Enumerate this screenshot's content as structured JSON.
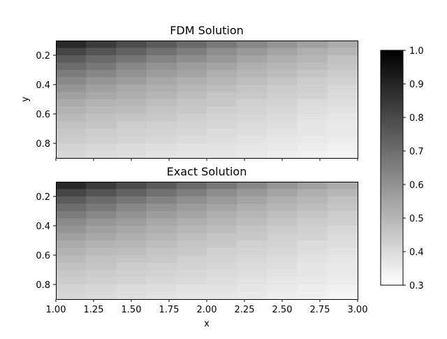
{
  "chart_data": {
    "type": "heatmap",
    "colormap": "gray_r",
    "color_min": 0.3,
    "color_max": 1.0,
    "x_extent": [
      1.0,
      3.0
    ],
    "y_extent": [
      0.1,
      0.9
    ],
    "x_cells": 10,
    "y_cells": 16,
    "x_centers": [
      1.1,
      1.3,
      1.5,
      1.7,
      1.9,
      2.1,
      2.3,
      2.5,
      2.7,
      2.9
    ],
    "y_centers": [
      0.125,
      0.175,
      0.225,
      0.275,
      0.325,
      0.375,
      0.425,
      0.475,
      0.525,
      0.575,
      0.625,
      0.675,
      0.725,
      0.775,
      0.825,
      0.875
    ],
    "panels": [
      {
        "title": "FDM Solution",
        "ylabel": "y",
        "xlabel": "",
        "show_x_ticklabels": false,
        "values": [
          [
            0.89,
            0.84,
            0.79,
            0.75,
            0.71,
            0.67,
            0.63,
            0.59,
            0.56,
            0.53
          ],
          [
            0.81,
            0.77,
            0.73,
            0.69,
            0.65,
            0.61,
            0.58,
            0.55,
            0.52,
            0.5
          ],
          [
            0.75,
            0.71,
            0.68,
            0.64,
            0.61,
            0.58,
            0.55,
            0.52,
            0.5,
            0.47
          ],
          [
            0.7,
            0.67,
            0.63,
            0.6,
            0.57,
            0.55,
            0.52,
            0.5,
            0.48,
            0.46
          ],
          [
            0.66,
            0.63,
            0.6,
            0.57,
            0.55,
            0.52,
            0.5,
            0.48,
            0.46,
            0.44
          ],
          [
            0.62,
            0.59,
            0.57,
            0.54,
            0.52,
            0.5,
            0.48,
            0.46,
            0.44,
            0.43
          ],
          [
            0.59,
            0.56,
            0.54,
            0.52,
            0.5,
            0.48,
            0.46,
            0.44,
            0.43,
            0.41
          ],
          [
            0.56,
            0.54,
            0.52,
            0.5,
            0.48,
            0.46,
            0.45,
            0.43,
            0.42,
            0.4
          ],
          [
            0.53,
            0.51,
            0.5,
            0.48,
            0.46,
            0.45,
            0.43,
            0.42,
            0.4,
            0.39
          ],
          [
            0.51,
            0.49,
            0.48,
            0.46,
            0.45,
            0.43,
            0.42,
            0.41,
            0.39,
            0.38
          ],
          [
            0.49,
            0.47,
            0.46,
            0.45,
            0.43,
            0.42,
            0.41,
            0.4,
            0.38,
            0.37
          ],
          [
            0.47,
            0.46,
            0.44,
            0.43,
            0.42,
            0.41,
            0.4,
            0.39,
            0.37,
            0.36
          ],
          [
            0.45,
            0.44,
            0.43,
            0.42,
            0.41,
            0.4,
            0.39,
            0.38,
            0.37,
            0.36
          ],
          [
            0.44,
            0.43,
            0.42,
            0.41,
            0.4,
            0.39,
            0.38,
            0.37,
            0.36,
            0.35
          ],
          [
            0.42,
            0.41,
            0.4,
            0.39,
            0.38,
            0.38,
            0.37,
            0.36,
            0.35,
            0.34
          ],
          [
            0.41,
            0.4,
            0.39,
            0.38,
            0.37,
            0.37,
            0.36,
            0.35,
            0.34,
            0.33
          ]
        ]
      },
      {
        "title": "Exact Solution",
        "ylabel": "",
        "xlabel": "x",
        "show_x_ticklabels": true,
        "values": [
          [
            0.89,
            0.84,
            0.79,
            0.75,
            0.71,
            0.67,
            0.63,
            0.59,
            0.56,
            0.53
          ],
          [
            0.81,
            0.77,
            0.73,
            0.69,
            0.65,
            0.61,
            0.58,
            0.55,
            0.52,
            0.5
          ],
          [
            0.75,
            0.71,
            0.68,
            0.64,
            0.61,
            0.58,
            0.55,
            0.52,
            0.5,
            0.47
          ],
          [
            0.7,
            0.67,
            0.63,
            0.6,
            0.57,
            0.55,
            0.52,
            0.5,
            0.48,
            0.46
          ],
          [
            0.66,
            0.63,
            0.6,
            0.57,
            0.55,
            0.52,
            0.5,
            0.48,
            0.46,
            0.44
          ],
          [
            0.62,
            0.59,
            0.57,
            0.54,
            0.52,
            0.5,
            0.48,
            0.46,
            0.44,
            0.43
          ],
          [
            0.59,
            0.56,
            0.54,
            0.52,
            0.5,
            0.48,
            0.46,
            0.44,
            0.43,
            0.41
          ],
          [
            0.56,
            0.54,
            0.52,
            0.5,
            0.48,
            0.46,
            0.45,
            0.43,
            0.42,
            0.4
          ],
          [
            0.53,
            0.51,
            0.5,
            0.48,
            0.46,
            0.45,
            0.43,
            0.42,
            0.4,
            0.39
          ],
          [
            0.51,
            0.49,
            0.48,
            0.46,
            0.45,
            0.43,
            0.42,
            0.41,
            0.39,
            0.38
          ],
          [
            0.49,
            0.47,
            0.46,
            0.45,
            0.43,
            0.42,
            0.41,
            0.4,
            0.38,
            0.37
          ],
          [
            0.47,
            0.46,
            0.44,
            0.43,
            0.42,
            0.41,
            0.4,
            0.39,
            0.37,
            0.36
          ],
          [
            0.45,
            0.44,
            0.43,
            0.42,
            0.41,
            0.4,
            0.39,
            0.38,
            0.37,
            0.36
          ],
          [
            0.44,
            0.43,
            0.42,
            0.41,
            0.4,
            0.39,
            0.38,
            0.37,
            0.36,
            0.35
          ],
          [
            0.42,
            0.41,
            0.4,
            0.39,
            0.38,
            0.38,
            0.37,
            0.36,
            0.35,
            0.34
          ],
          [
            0.41,
            0.4,
            0.39,
            0.38,
            0.37,
            0.37,
            0.36,
            0.35,
            0.34,
            0.33
          ]
        ]
      }
    ],
    "x_ticks": [
      "1.00",
      "1.25",
      "1.50",
      "1.75",
      "2.00",
      "2.25",
      "2.50",
      "2.75",
      "3.00"
    ],
    "y_ticks": [
      "0.2",
      "0.4",
      "0.6",
      "0.8"
    ],
    "colorbar_ticks": [
      "0.3",
      "0.4",
      "0.5",
      "0.6",
      "0.7",
      "0.8",
      "0.9",
      "1.0"
    ],
    "grid": false,
    "legend": "none"
  }
}
